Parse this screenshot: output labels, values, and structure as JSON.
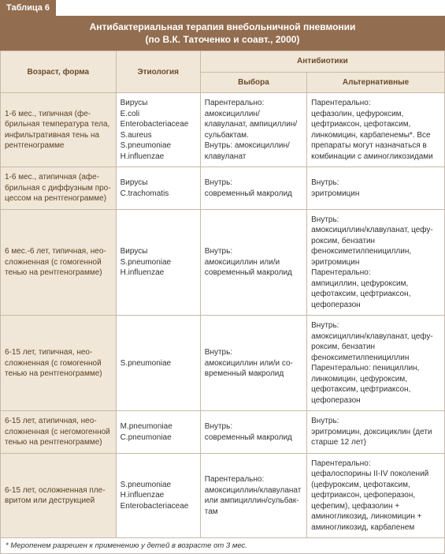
{
  "tableLabel": "Таблица 6",
  "titleLine1": "Антибактериальная терапия внебольничной пневмонии",
  "titleLine2": "(по В.К. Таточенко и соавт., 2000)",
  "headers": {
    "age": "Возраст, форма",
    "etiology": "Этиология",
    "antibiotics": "Антибиотики",
    "choice": "Выбора",
    "alternative": "Альтернативные"
  },
  "rows": [
    {
      "age": "1-6 мес., типичная (фе­брильная температура тела, инфильтративная тень на рентгенограмме",
      "etiology": "Вирусы\nE.coli\nEnterobacteriaceae\nS.aureus\nS.pneumoniae\nH.influenzae",
      "choice": "Парентерально:\nамоксициллин/\nклавуланат, ампициллин/\nсульбактам.\nВнутрь: амоксициллин/\nклавуланат",
      "alt": "Парентерально:\nцефазолин, цефуроксим, цефтриак­сон, цефотаксим, линкомицин, кар­бапенемы*. Все препараты могут назначаться в комбинации с амино­гликозидами"
    },
    {
      "age": "1-6 мес., атипичная (афе­брильная с диффузным про­цессом на рентгенограмме)",
      "etiology": "Вирусы\nC.trachomatis",
      "choice": "Внутрь:\nсовременный макролид",
      "alt": "Внутрь:\nэритромицин"
    },
    {
      "age": "6 мес.-6 лет, типичная, нео­сложненная (с гомогенной тенью на рентгенограмме)",
      "etiology": "Вирусы\nS.pneumoniae\nH.influenzae",
      "choice": "Внутрь:\nамоксициллин или/и\nсовременный макролид",
      "alt": "Внутрь:\nамоксициллин/клавуланат, цефу­роксим, бензатин феноксиметилпе­нициллин, эритромицин\nПарентерально:\nампициллин, цефуроксим, цефотак­сим, цефтриаксон, цефоперазон"
    },
    {
      "age": "6-15 лет, типичная, нео­сложненная (с гомогенной тенью на рентгенограмме)",
      "etiology": "S.pneumoniae",
      "choice": "Внутрь:\nамоксициллин или/и со­временный макролид",
      "alt": "Внутрь:\nамоксициллин/клавуланат, цефу­роксим, бензатин феноксиметилпе­нициллин\nПарентерально: пенициллин, линко­мицин, цефуроксим, цефотаксим, цефтриаксон, цефоперазон"
    },
    {
      "age": "6-15 лет, атипичная, нео­сложненная (с негомоген­ной тенью на рентгенограмме)",
      "etiology": "M.pneumoniae\nC.pneumoniae",
      "choice": "Внутрь:\nсовременный макролид",
      "alt": "Внутрь:\nэритромицин, доксициклин (дети старше 12 лет)"
    },
    {
      "age": "6-15 лет, осложненная пле­вритом или деструкцией",
      "etiology": "S.pneumoniae\nH.influenzae\nEnterobacteriaceae",
      "choice": "Парентерально:\nамоксициллин/клавуланат или ампициллин/сульбак­там",
      "alt": "Парентерально:\nцефалоспорины II-IV поколений (це­фуроксим, цефотаксим, цефтриак­сон, цефоперазон, цефепим), цефа­золин + аминогликозид, линкомицин + аминогликозид, карбапенем"
    }
  ],
  "footnote": "* Меропенем разрешен к применению у детей в возрасте от 3 мес.",
  "colors": {
    "headerBg": "#936d4f",
    "cellHeaderBg": "#f1e7d8",
    "border": "#c7b9a8"
  },
  "colWidths": [
    "26%",
    "19%",
    "24%",
    "31%"
  ]
}
